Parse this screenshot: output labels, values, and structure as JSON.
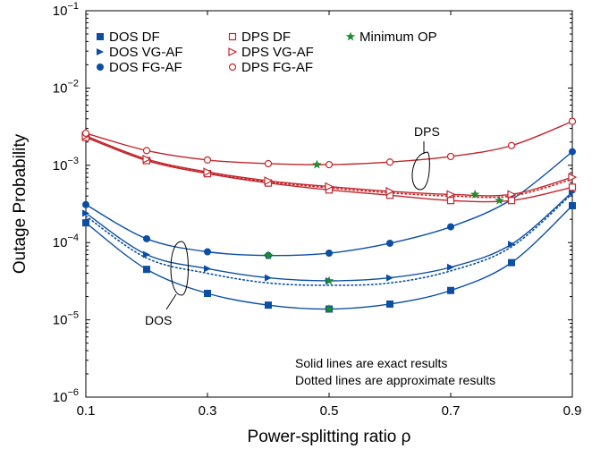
{
  "chart_data": {
    "type": "line",
    "xlabel": "Power-splitting ratio ρ",
    "ylabel": "Outage Probability",
    "xlim": [
      0.1,
      0.9
    ],
    "ylim": [
      1e-06,
      0.1
    ],
    "yscale": "log",
    "xticks": [
      0.1,
      0.3,
      0.5,
      0.7,
      0.9
    ],
    "xtick_labels": [
      "0.1",
      "0.3",
      "0.5",
      "0.7",
      "0.9"
    ],
    "ytick_exponents": [
      -6,
      -5,
      -4,
      -3,
      -2,
      -1
    ],
    "ytick_base": "10",
    "grid": false,
    "legend": {
      "placement": "top-left",
      "entries": [
        {
          "label": "DOS DF",
          "marker": "square-filled",
          "color": "#0b4ea2"
        },
        {
          "label": "DOS VG-AF",
          "marker": "triangle-right-filled",
          "color": "#0b4ea2"
        },
        {
          "label": "DOS FG-AF",
          "marker": "circle-filled",
          "color": "#0b4ea2"
        },
        {
          "label": "DPS DF",
          "marker": "square-open",
          "color": "#c1272d"
        },
        {
          "label": "DPS VG-AF",
          "marker": "triangle-right-open",
          "color": "#c1272d"
        },
        {
          "label": "DPS FG-AF",
          "marker": "circle-open",
          "color": "#c1272d"
        },
        {
          "label": "Minimum OP",
          "marker": "star",
          "color": "#1f8a2e"
        }
      ]
    },
    "series": [
      {
        "name": "DOS DF",
        "color": "#0b4ea2",
        "marker": "square-filled",
        "x": [
          0.1,
          0.2,
          0.3,
          0.4,
          0.5,
          0.6,
          0.7,
          0.8,
          0.9
        ],
        "y": [
          0.00018,
          4.5e-05,
          2.2e-05,
          1.55e-05,
          1.38e-05,
          1.6e-05,
          2.4e-05,
          5.5e-05,
          0.0003
        ]
      },
      {
        "name": "DOS VG-AF",
        "color": "#0b4ea2",
        "marker": "triangle-right-filled",
        "x": [
          0.1,
          0.2,
          0.3,
          0.4,
          0.5,
          0.6,
          0.7,
          0.8,
          0.9
        ],
        "y": [
          0.00024,
          7e-05,
          4.6e-05,
          3.5e-05,
          3.2e-05,
          3.5e-05,
          4.8e-05,
          9.5e-05,
          0.00045
        ]
      },
      {
        "name": "DOS FG-AF",
        "color": "#0b4ea2",
        "marker": "circle-filled",
        "x": [
          0.1,
          0.2,
          0.3,
          0.4,
          0.5,
          0.6,
          0.7,
          0.8,
          0.9
        ],
        "y": [
          0.00031,
          0.000112,
          7.6e-05,
          6.8e-05,
          7.3e-05,
          9.8e-05,
          0.00016,
          0.00036,
          0.0015
        ]
      },
      {
        "name": "DPS DF",
        "color": "#c1272d",
        "marker": "square-open",
        "x": [
          0.1,
          0.2,
          0.3,
          0.4,
          0.5,
          0.6,
          0.7,
          0.8,
          0.9
        ],
        "y": [
          0.0023,
          0.00115,
          0.00078,
          0.00059,
          0.00048,
          0.00041,
          0.00035,
          0.00035,
          0.00052
        ]
      },
      {
        "name": "DPS VG-AF",
        "color": "#c1272d",
        "marker": "triangle-right-open",
        "x": [
          0.1,
          0.2,
          0.3,
          0.4,
          0.5,
          0.6,
          0.7,
          0.8,
          0.9
        ],
        "y": [
          0.0024,
          0.0012,
          0.00082,
          0.00063,
          0.00053,
          0.00046,
          0.00042,
          0.00042,
          0.0007
        ]
      },
      {
        "name": "DPS FG-AF",
        "color": "#c1272d",
        "marker": "circle-open",
        "x": [
          0.1,
          0.2,
          0.3,
          0.4,
          0.5,
          0.6,
          0.7,
          0.8,
          0.9
        ],
        "y": [
          0.0026,
          0.00155,
          0.00117,
          0.00105,
          0.00102,
          0.0011,
          0.0013,
          0.0018,
          0.0037
        ]
      }
    ],
    "approximate_series": [
      {
        "name": "DOS VG-AF",
        "color": "#0b4ea2",
        "x": [
          0.1,
          0.2,
          0.3,
          0.4,
          0.5,
          0.6,
          0.7,
          0.8,
          0.9
        ],
        "y": [
          0.00022,
          6.3e-05,
          4e-05,
          3e-05,
          2.8e-05,
          3e-05,
          4.3e-05,
          8.8e-05,
          0.00043
        ]
      },
      {
        "name": "DPS VG-AF",
        "color": "#c1272d",
        "x": [
          0.1,
          0.2,
          0.3,
          0.4,
          0.5,
          0.6,
          0.7,
          0.8,
          0.9
        ],
        "y": [
          0.0023,
          0.00118,
          0.0008,
          0.00061,
          0.00051,
          0.00044,
          0.0004,
          0.0004,
          0.00066
        ]
      }
    ],
    "minimum_op": {
      "color": "#1f8a2e",
      "x": [
        0.5,
        0.5,
        0.4,
        0.48,
        0.74,
        0.78
      ],
      "y": [
        1.38e-05,
        3.2e-05,
        6.8e-05,
        0.00102,
        0.00042,
        0.00035
      ]
    },
    "annotations": {
      "dps_label": "DPS",
      "dos_label": "DOS",
      "note_line1": "Solid lines are exact results",
      "note_line2": "Dotted lines are approximate results"
    }
  }
}
